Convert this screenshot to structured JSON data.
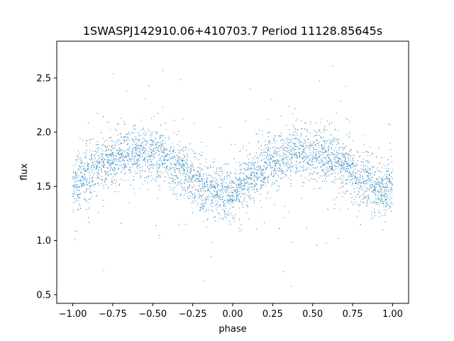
{
  "chart_data": {
    "type": "scatter",
    "title": "1SWASPJ142910.06+410703.7 Period 11128.85645s",
    "xlabel": "phase",
    "ylabel": "flux",
    "xlim": [
      -1.1,
      1.1
    ],
    "ylim": [
      0.42,
      2.84
    ],
    "xticks": [
      -1.0,
      -0.75,
      -0.5,
      -0.25,
      0.0,
      0.25,
      0.5,
      0.75,
      1.0
    ],
    "xtick_labels": [
      "−1.00",
      "−0.75",
      "−0.50",
      "−0.25",
      "0.00",
      "0.25",
      "0.50",
      "0.75",
      "1.00"
    ],
    "yticks": [
      0.5,
      1.0,
      1.5,
      2.0,
      2.5
    ],
    "ytick_labels": [
      "0.5",
      "1.0",
      "1.5",
      "2.0",
      "2.5"
    ],
    "grid": false,
    "marker_color": "#1f77b4",
    "series": [
      {
        "x": [
          -1.0,
          -0.95,
          -0.9,
          -0.85,
          -0.8,
          -0.75,
          -0.7,
          -0.65,
          -0.6,
          -0.55,
          -0.5,
          -0.45,
          -0.4,
          -0.35,
          -0.3,
          -0.25,
          -0.2,
          -0.15,
          -0.1,
          -0.05,
          0.0,
          0.05,
          0.1,
          0.15,
          0.2,
          0.25,
          0.3,
          0.35,
          0.4,
          0.45,
          0.5,
          0.55,
          0.6,
          0.65,
          0.7,
          0.75,
          0.8,
          0.85,
          0.9,
          0.95,
          1.0
        ],
        "y": [
          1.5,
          1.56,
          1.61,
          1.67,
          1.72,
          1.76,
          1.79,
          1.81,
          1.82,
          1.81,
          1.8,
          1.78,
          1.74,
          1.69,
          1.63,
          1.57,
          1.51,
          1.47,
          1.44,
          1.43,
          1.45,
          1.5,
          1.56,
          1.61,
          1.67,
          1.72,
          1.76,
          1.79,
          1.81,
          1.82,
          1.81,
          1.8,
          1.78,
          1.74,
          1.69,
          1.63,
          1.57,
          1.51,
          1.47,
          1.44,
          1.5
        ]
      }
    ]
  }
}
